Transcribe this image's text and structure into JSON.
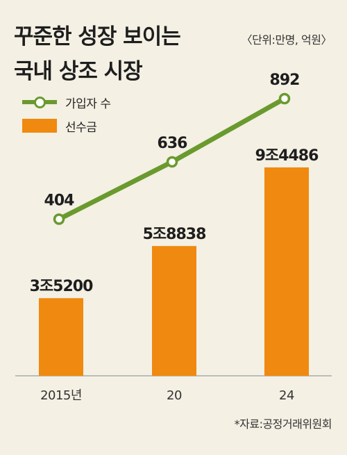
{
  "title_lines": [
    "꾸준한 성장 보이는",
    "국내 상조 시장"
  ],
  "unit_note": "〈단위:만명, 억원〉",
  "source": "*자료:공정거래위원회",
  "colors": {
    "line": "#6a9a2e",
    "bar": "#f0890f",
    "background": "#f4f0e4",
    "axis": "#aaaaaa"
  },
  "chart_data": {
    "type": "bar",
    "categories": [
      "2015년",
      "20",
      "24"
    ],
    "series": [
      {
        "name": "가입자 수",
        "type": "line",
        "unit": "만명",
        "values": [
          404,
          636,
          892
        ],
        "labels": [
          "404",
          "636",
          "892"
        ]
      },
      {
        "name": "선수금",
        "type": "bar",
        "unit": "억원",
        "values": [
          35200,
          58838,
          94486
        ],
        "labels": [
          "3조5200",
          "5조8838",
          "9조4486"
        ]
      }
    ],
    "legend": "top-left",
    "grid": false
  }
}
